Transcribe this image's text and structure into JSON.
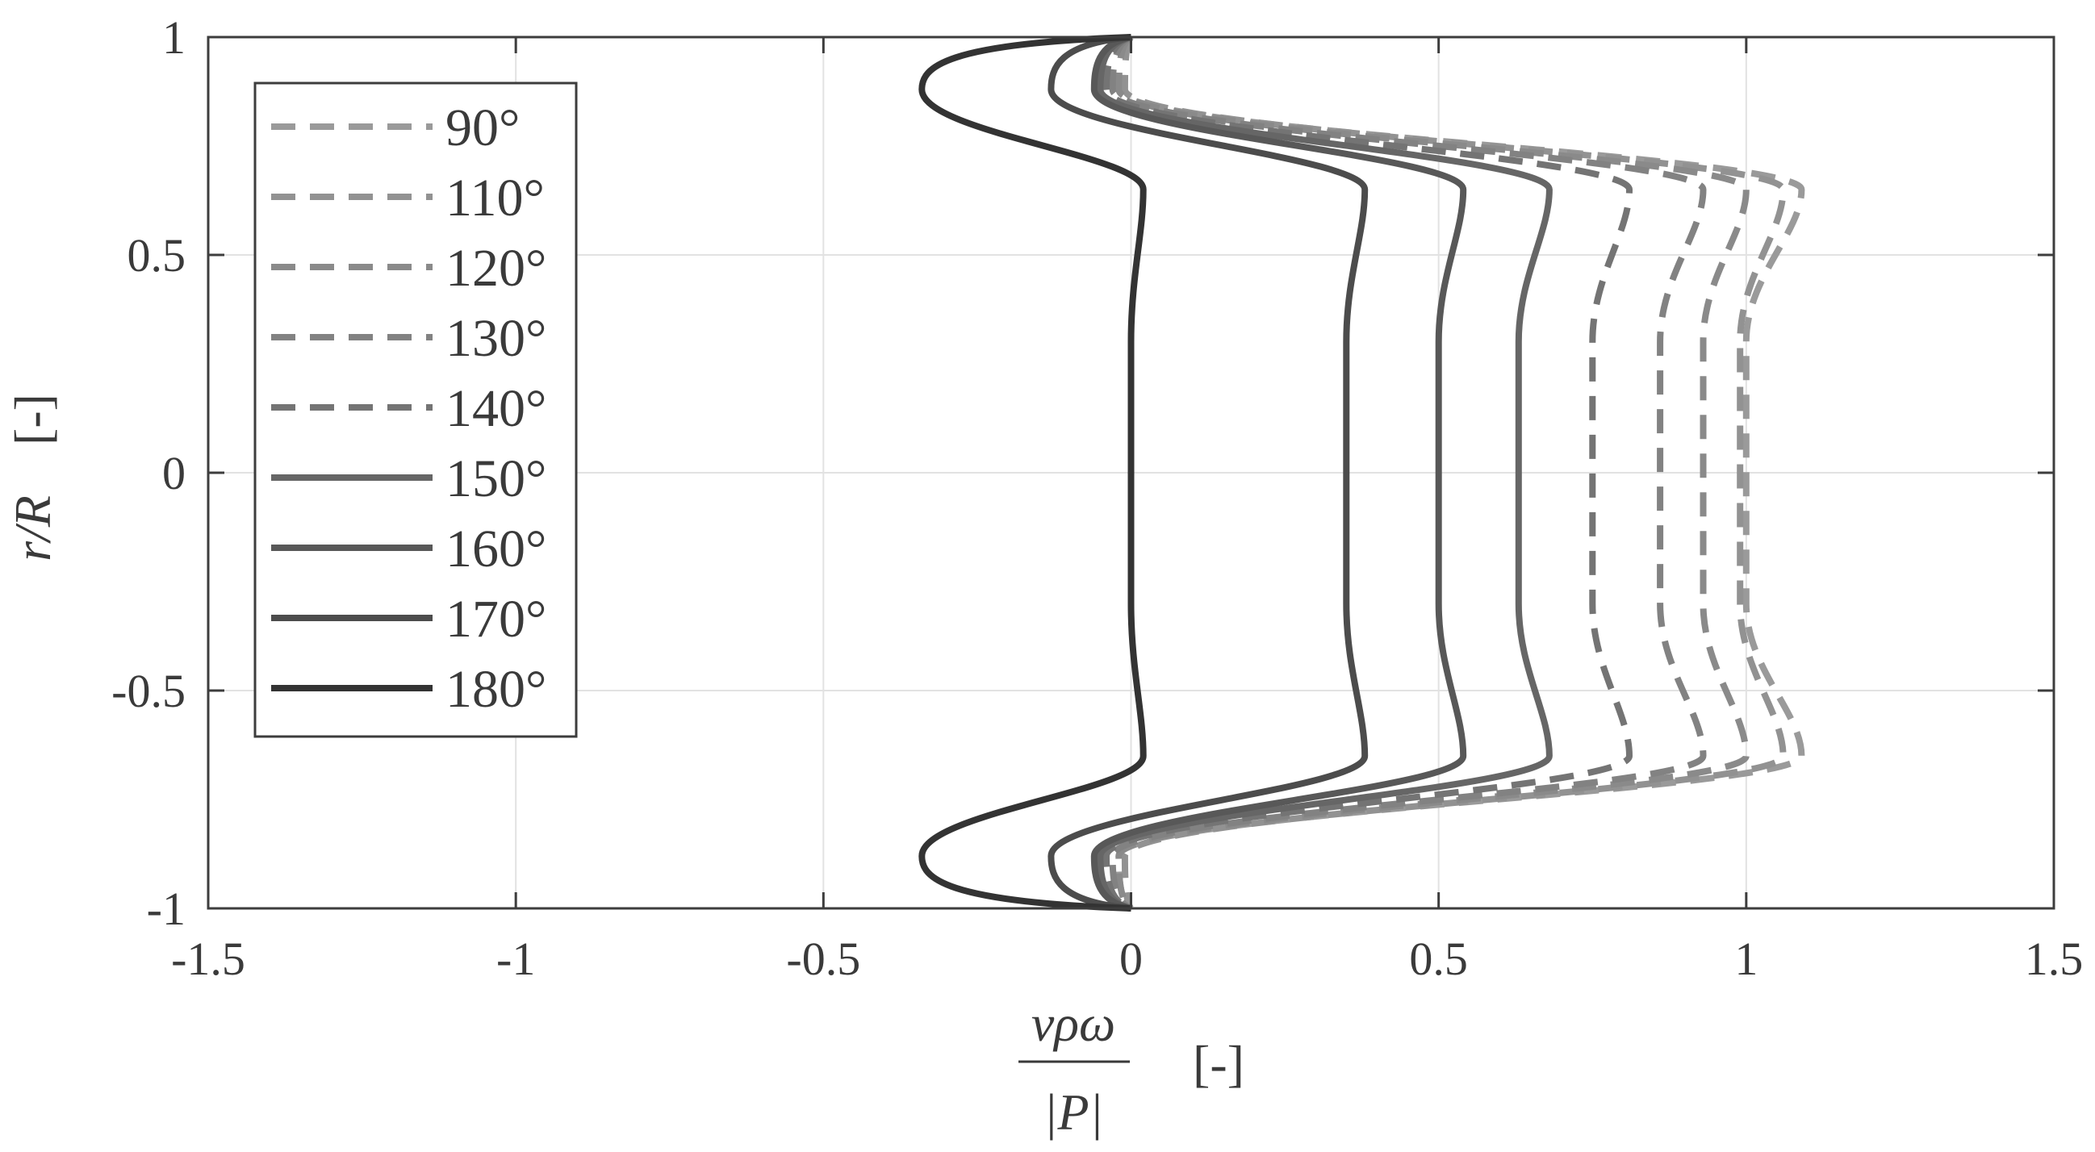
{
  "chart_data": {
    "type": "line",
    "xlabel": {
      "numerator": "vρω",
      "denominator": "|P|",
      "unit": "[-]"
    },
    "ylabel": {
      "var": "r/R",
      "unit": "[-]"
    },
    "xlim": [
      -1.5,
      1.5
    ],
    "ylim": [
      -1,
      1
    ],
    "xticks": [
      -1.5,
      -1,
      -0.5,
      0,
      0.5,
      1,
      1.5
    ],
    "xtick_labels": [
      "-1.5",
      "-1",
      "-0.5",
      "0",
      "0.5",
      "1",
      "1.5"
    ],
    "yticks": [
      -1,
      -0.5,
      0,
      0.5,
      1
    ],
    "ytick_labels": [
      "-1",
      "-0.5",
      "0",
      "0.5",
      "1"
    ],
    "grid": true,
    "legend_position": "top-left",
    "series": [
      {
        "name": "90°",
        "style": "dashed",
        "color": "#9a9a9a",
        "center": 1.0,
        "shoulder": 1.09,
        "inner": -0.02
      },
      {
        "name": "110°",
        "style": "dashed",
        "color": "#929292",
        "center": 0.99,
        "shoulder": 1.06,
        "inner": -0.01
      },
      {
        "name": "120°",
        "style": "dashed",
        "color": "#8a8a8a",
        "center": 0.93,
        "shoulder": 1.0,
        "inner": -0.02
      },
      {
        "name": "130°",
        "style": "dashed",
        "color": "#828282",
        "center": 0.86,
        "shoulder": 0.93,
        "inner": -0.03
      },
      {
        "name": "140°",
        "style": "dashed",
        "color": "#747474",
        "center": 0.75,
        "shoulder": 0.81,
        "inner": -0.04
      },
      {
        "name": "150°",
        "style": "solid",
        "color": "#666666",
        "center": 0.63,
        "shoulder": 0.68,
        "inner": -0.05
      },
      {
        "name": "160°",
        "style": "solid",
        "color": "#585858",
        "center": 0.5,
        "shoulder": 0.54,
        "inner": -0.06
      },
      {
        "name": "170°",
        "style": "solid",
        "color": "#4c4c4c",
        "center": 0.35,
        "shoulder": 0.38,
        "inner": -0.13
      },
      {
        "name": "180°",
        "style": "solid",
        "color": "#333333",
        "center": 0.0,
        "shoulder": 0.02,
        "inner": -0.34
      }
    ],
    "series_shape": {
      "shoulder_r": 0.65,
      "inner_r": 0.88,
      "endpoints": [
        [
          0,
          1
        ],
        [
          0,
          -1
        ]
      ]
    }
  }
}
